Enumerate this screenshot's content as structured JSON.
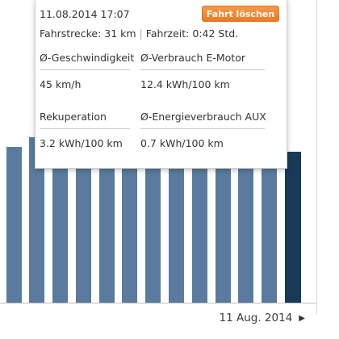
{
  "popup": {
    "datetime": "11.08.2014 17:07",
    "delete_label": "Fahrt löschen",
    "distance": "Fahrstrecke: 31 km",
    "separator": "|",
    "duration": "Fahrzeit: 0:42 Std.",
    "stats": [
      {
        "label": "Ø-Geschwindigkeit",
        "value": "45 km/h"
      },
      {
        "label": "Ø-Verbrauch E-Motor",
        "value": "12.4 kWh/100 km"
      },
      {
        "label": "Rekuperation",
        "value": "3.2 kWh/100 km"
      },
      {
        "label": "Ø-Energieverbrauch AUX",
        "value": "0.7 kWh/100 km"
      }
    ]
  },
  "date_nav": {
    "label": "11 Aug. 2014",
    "next_icon": "triangle-right-icon"
  },
  "colors": {
    "bar": "#5a7b9d",
    "bar_selected": "#183a57",
    "button": "#ef8330"
  }
}
